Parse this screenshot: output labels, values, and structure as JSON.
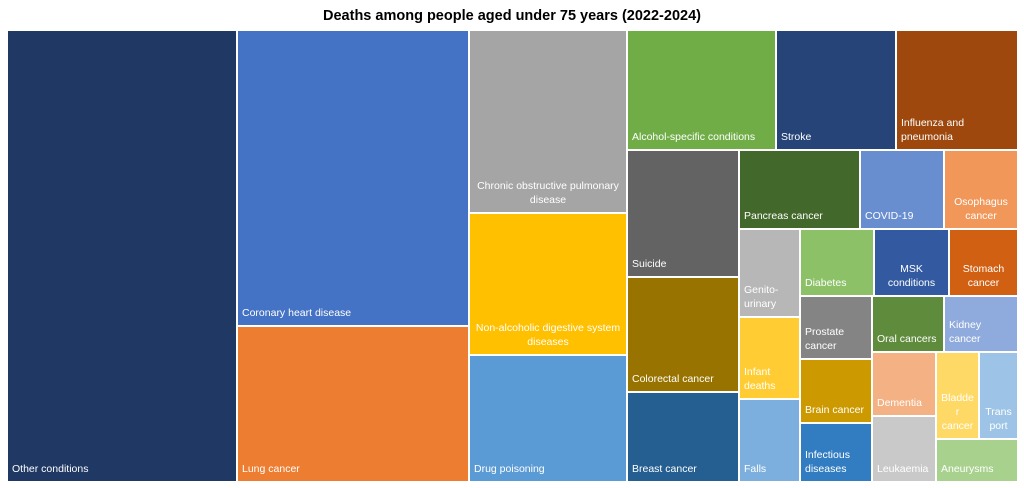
{
  "chart_data": {
    "type": "treemap",
    "title": "Deaths among people aged under 75 years (2022-2024)",
    "labels": [
      "Other conditions",
      "Coronary heart disease",
      "Lung cancer",
      "Chronic obstructive pulmonary\ndisease",
      "Non-alcoholic digestive system\ndiseases",
      "Drug poisoning",
      "Alcohol-specific conditions",
      "Stroke",
      "Influenza and\npneumonia",
      "Suicide",
      "Colorectal cancer",
      "Breast cancer",
      "Pancreas cancer",
      "COVID-19",
      "Osophagus\ncancer",
      "Genito-\nurinary",
      "Diabetes",
      "MSK\nconditions",
      "Stomach\ncancer",
      "Infant\ndeaths",
      "Falls",
      "Prostate\ncancer",
      "Brain cancer",
      "Infectious\ndiseases",
      "Oral cancers",
      "Kidney cancer",
      "Dementia",
      "Leukaemia",
      "Bladde\nr\ncancer",
      "Trans\nport",
      "Aneurysms"
    ],
    "values": [
      22.7,
      15.0,
      7.9,
      6.3,
      4.9,
      4.3,
      3.8,
      3.1,
      3.1,
      3.0,
      2.8,
      2.2,
      2.0,
      1.4,
      1.2,
      1.1,
      1.1,
      1.1,
      1.0,
      1.1,
      1.1,
      1.0,
      1.0,
      0.9,
      0.9,
      0.9,
      0.9,
      0.9,
      0.8,
      0.7,
      0.7
    ],
    "colors": [
      "#203864",
      "#4472c4",
      "#ed7d31",
      "#a5a5a5",
      "#ffc000",
      "#5b9bd5",
      "#70ad47",
      "#264478",
      "#9e480e",
      "#636363",
      "#997300",
      "#255e91",
      "#43682b",
      "#698ed0",
      "#f1975a",
      "#b7b7b7",
      "#8cc168",
      "#335aa1",
      "#d26012",
      "#ffcd33",
      "#7cafdd",
      "#848484",
      "#cc9a00",
      "#327dc2",
      "#5f8b3d",
      "#8faadc",
      "#f4b183",
      "#c9c9c9",
      "#ffd966",
      "#9dc3e6",
      "#a9d18e"
    ]
  }
}
